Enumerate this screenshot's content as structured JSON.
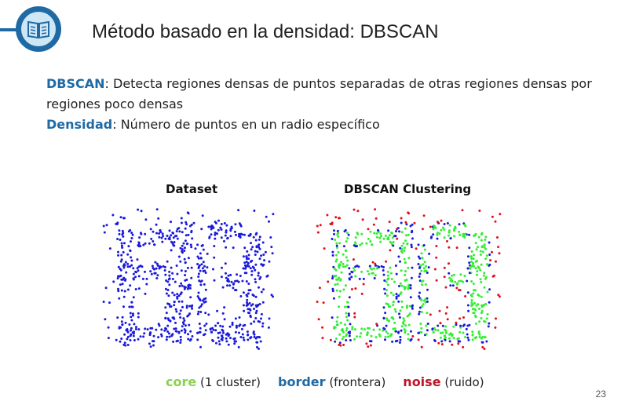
{
  "slide": {
    "title": "Método basado en la densidad: DBSCAN",
    "page_number": "23",
    "header_icon": "book-icon"
  },
  "content": {
    "line1_term": "DBSCAN",
    "line1_text": ": Detecta regiones densas de puntos separadas de otras regiones densas por regiones poco densas",
    "line2_term": "Densidad",
    "line2_text": ": Número de puntos en un radio específico"
  },
  "figure": {
    "left_title": "Dataset",
    "right_title": "DBSCAN Clustering",
    "legend": {
      "core_label": "core",
      "core_desc": " (1 cluster)",
      "border_label": "border",
      "border_desc": " (frontera)",
      "noise_label": "noise",
      "noise_desc": " (ruido)"
    }
  },
  "colors": {
    "accent": "#1f6aa5",
    "dataset_points": "#1a1adb",
    "core": "#33ee33",
    "border": "#1a1adb",
    "noise": "#e0101a",
    "legend_core": "#8bd14e",
    "legend_border": "#1f6aa5",
    "legend_noise": "#c0142a"
  }
}
